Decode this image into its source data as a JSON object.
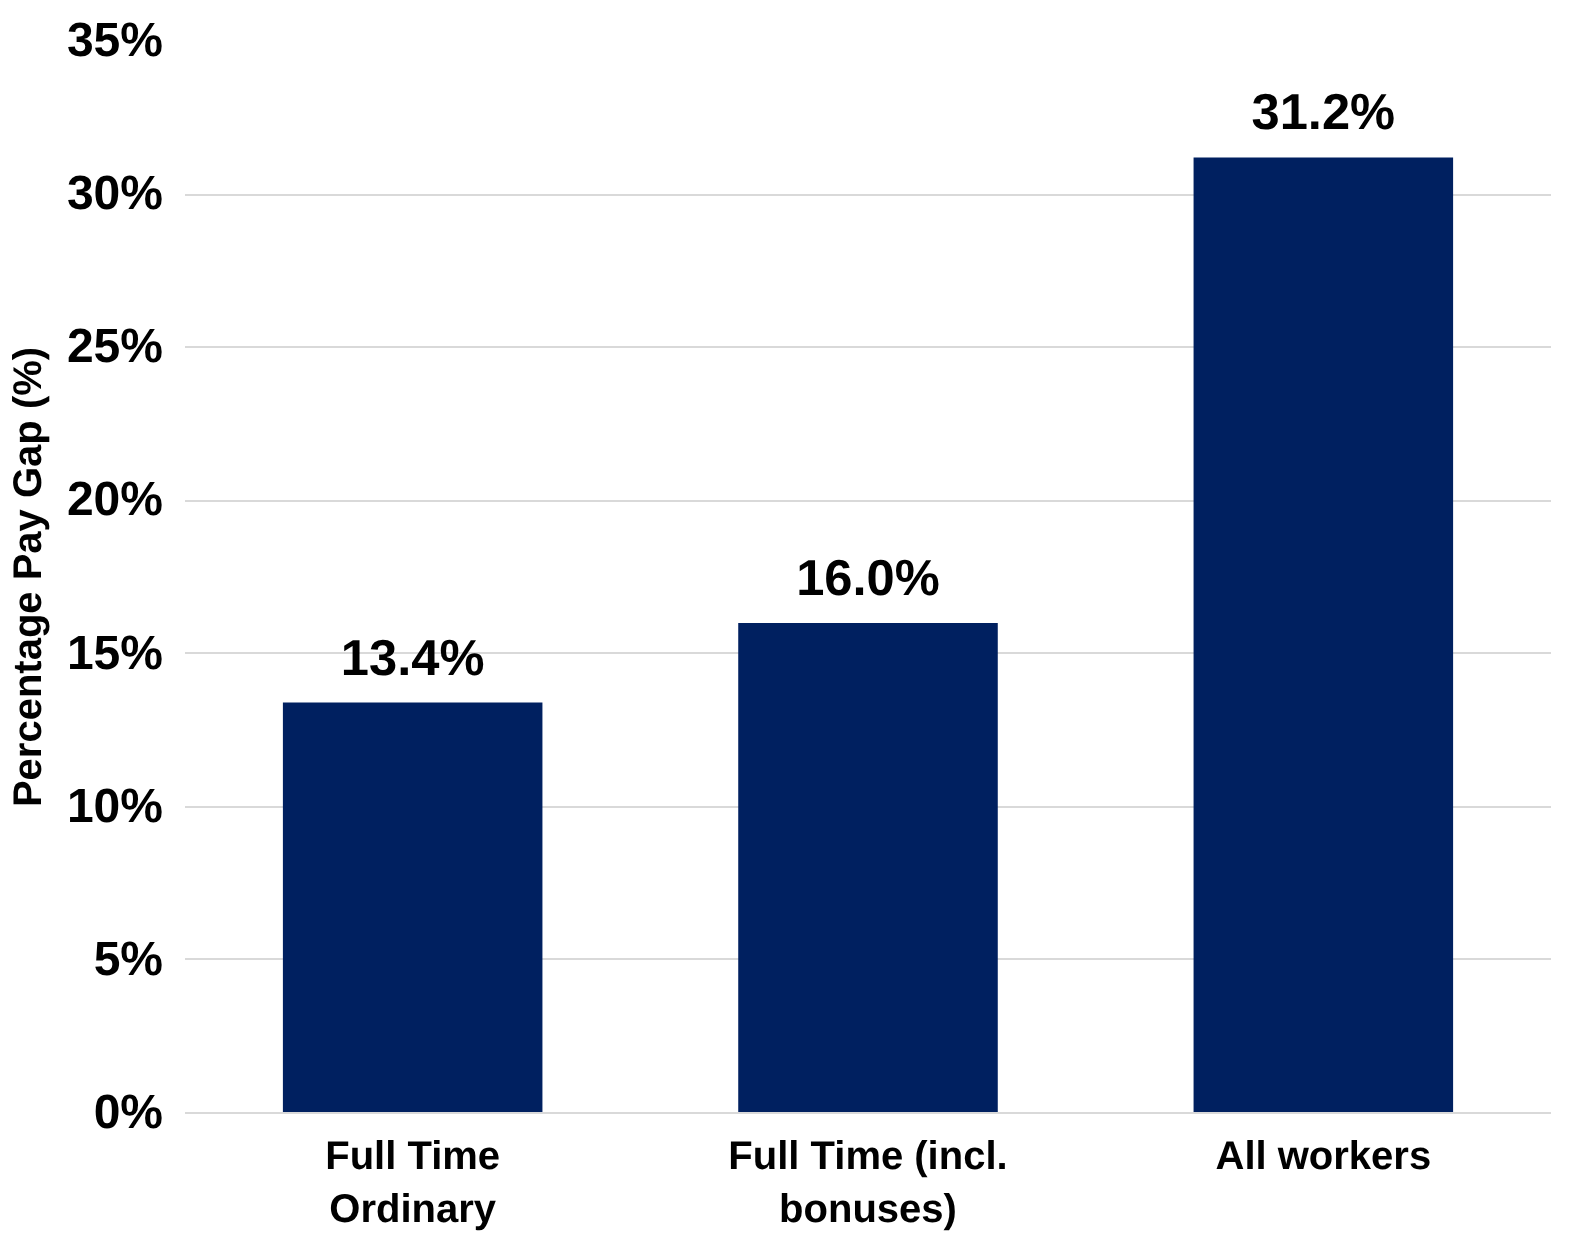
{
  "chart_data": {
    "type": "bar",
    "ylabel": "Percentage Pay Gap (%)",
    "categories": [
      "Full Time\nOrdinary",
      "Full Time (incl.\nbonuses)",
      "All workers"
    ],
    "values": [
      13.4,
      16.0,
      31.2
    ],
    "color": "#002060",
    "value_labels": [
      "13.4%",
      "16.0%",
      "31.2%"
    ],
    "ylim": [
      0,
      35
    ],
    "yticks": [
      {
        "value": 0,
        "label": "0%"
      },
      {
        "value": 5,
        "label": "5%"
      },
      {
        "value": 10,
        "label": "10%"
      },
      {
        "value": 15,
        "label": "15%"
      },
      {
        "value": 20,
        "label": "20%"
      },
      {
        "value": 25,
        "label": "25%"
      },
      {
        "value": 30,
        "label": "30%"
      },
      {
        "value": 35,
        "label": "35%"
      }
    ],
    "grid": "y"
  }
}
